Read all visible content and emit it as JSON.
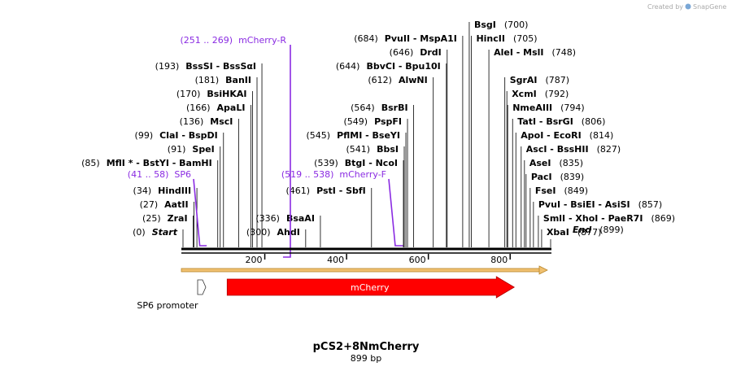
{
  "credit": {
    "text": "Created by",
    "brand": "SnapGene"
  },
  "plasmid": {
    "name": "pCS2+8NmCherry",
    "length_label": "899 bp",
    "length": 899
  },
  "colors": {
    "primer": "#8a2be2",
    "cds": "#ff0000",
    "backbone": "#f0c070",
    "site_line": "#000000"
  },
  "scale": {
    "ticks": [
      200,
      400,
      600,
      800
    ]
  },
  "sites": [
    {
      "pos": 0,
      "pos_label": "(0)",
      "name": "Start",
      "italic": true,
      "row": 0,
      "side": "left"
    },
    {
      "pos": 25,
      "pos_label": "(25)",
      "name": "ZraI",
      "row": 1,
      "side": "left"
    },
    {
      "pos": 27,
      "pos_label": "(27)",
      "name": "AatII",
      "row": 2,
      "side": "left"
    },
    {
      "pos": 34,
      "pos_label": "(34)",
      "name": "HindIII",
      "row": 3,
      "side": "left"
    },
    {
      "pos": 85,
      "pos_label": "(85)",
      "name": "MflI * - BstYI - BamHI",
      "row": 5,
      "side": "left"
    },
    {
      "pos": 91,
      "pos_label": "(91)",
      "name": "SpeI",
      "row": 6,
      "side": "left"
    },
    {
      "pos": 99,
      "pos_label": "(99)",
      "name": "ClaI - BspDI",
      "row": 7,
      "side": "left"
    },
    {
      "pos": 136,
      "pos_label": "(136)",
      "name": "MscI",
      "row": 8,
      "side": "left"
    },
    {
      "pos": 166,
      "pos_label": "(166)",
      "name": "ApaLI",
      "row": 9,
      "side": "left"
    },
    {
      "pos": 170,
      "pos_label": "(170)",
      "name": "BsiHKAI",
      "row": 10,
      "side": "left"
    },
    {
      "pos": 181,
      "pos_label": "(181)",
      "name": "BanII",
      "row": 11,
      "side": "left"
    },
    {
      "pos": 193,
      "pos_label": "(193)",
      "name": "BssSI - BssSαI",
      "row": 12,
      "side": "left"
    },
    {
      "pos": 300,
      "pos_label": "(300)",
      "name": "AhdI",
      "row": 0,
      "side": "left"
    },
    {
      "pos": 336,
      "pos_label": "(336)",
      "name": "BsaAI",
      "row": 1,
      "side": "left"
    },
    {
      "pos": 461,
      "pos_label": "(461)",
      "name": "PstI - SbfI",
      "row": 3,
      "side": "left"
    },
    {
      "pos": 539,
      "pos_label": "(539)",
      "name": "BtgI - NcoI",
      "row": 5,
      "side": "left"
    },
    {
      "pos": 541,
      "pos_label": "(541)",
      "name": "BbsI",
      "row": 6,
      "side": "left"
    },
    {
      "pos": 545,
      "pos_label": "(545)",
      "name": "PflMI - BseYI",
      "row": 7,
      "side": "left"
    },
    {
      "pos": 549,
      "pos_label": "(549)",
      "name": "PspFI",
      "row": 8,
      "side": "left"
    },
    {
      "pos": 564,
      "pos_label": "(564)",
      "name": "BsrBI",
      "row": 9,
      "side": "left"
    },
    {
      "pos": 612,
      "pos_label": "(612)",
      "name": "AlwNI",
      "row": 11,
      "side": "left"
    },
    {
      "pos": 644,
      "pos_label": "(644)",
      "name": "BbvCI - Bpu10I",
      "row": 12,
      "side": "left"
    },
    {
      "pos": 646,
      "pos_label": "(646)",
      "name": "DrdI",
      "row": 13,
      "side": "left"
    },
    {
      "pos": 684,
      "pos_label": "(684)",
      "name": "PvuII - MspA1I",
      "row": 14,
      "side": "left"
    },
    {
      "pos": 700,
      "pos_label": "(700)",
      "name": "BsgI",
      "row": 15,
      "side": "right"
    },
    {
      "pos": 705,
      "pos_label": "(705)",
      "name": "HincII",
      "row": 14,
      "side": "right"
    },
    {
      "pos": 748,
      "pos_label": "(748)",
      "name": "AleI - MslI",
      "row": 13,
      "side": "right"
    },
    {
      "pos": 787,
      "pos_label": "(787)",
      "name": "SgrAI",
      "row": 11,
      "side": "right"
    },
    {
      "pos": 792,
      "pos_label": "(792)",
      "name": "XcmI",
      "row": 10,
      "side": "right"
    },
    {
      "pos": 794,
      "pos_label": "(794)",
      "name": "NmeAIII",
      "row": 9,
      "side": "right"
    },
    {
      "pos": 806,
      "pos_label": "(806)",
      "name": "TatI - BsrGI",
      "row": 8,
      "side": "right"
    },
    {
      "pos": 814,
      "pos_label": "(814)",
      "name": "ApoI - EcoRI",
      "row": 7,
      "side": "right"
    },
    {
      "pos": 827,
      "pos_label": "(827)",
      "name": "AscI - BssHII",
      "row": 6,
      "side": "right"
    },
    {
      "pos": 835,
      "pos_label": "(835)",
      "name": "AseI",
      "row": 5,
      "side": "right"
    },
    {
      "pos": 839,
      "pos_label": "(839)",
      "name": "PacI",
      "row": 4,
      "side": "right"
    },
    {
      "pos": 849,
      "pos_label": "(849)",
      "name": "FseI",
      "row": 3,
      "side": "right"
    },
    {
      "pos": 857,
      "pos_label": "(857)",
      "name": "PvuI - BsiEI - AsiSI",
      "row": 2,
      "side": "right"
    },
    {
      "pos": 869,
      "pos_label": "(869)",
      "name": "SmlI - XhoI - PaeR7I",
      "row": 1,
      "side": "right"
    },
    {
      "pos": 877,
      "pos_label": "(877)",
      "name": "XbaI",
      "row": 0,
      "side": "right"
    },
    {
      "pos": 899,
      "pos_label": "(899)",
      "name": "End",
      "italic": true,
      "row": -1,
      "side": "right"
    }
  ],
  "primers": [
    {
      "name": "SP6",
      "range": "(41 .. 58)",
      "start": 41,
      "end": 58
    },
    {
      "name": "mCherry-R",
      "range": "(251 .. 269)",
      "start": 251,
      "end": 269
    },
    {
      "name": "mCherry-F",
      "range": "(519 .. 538)",
      "start": 519,
      "end": 538
    }
  ],
  "features": [
    {
      "name": "SP6 promoter",
      "start": 39,
      "end": 58,
      "type": "promoter"
    },
    {
      "name": "mCherry",
      "start": 108,
      "end": 810,
      "type": "cds"
    }
  ]
}
